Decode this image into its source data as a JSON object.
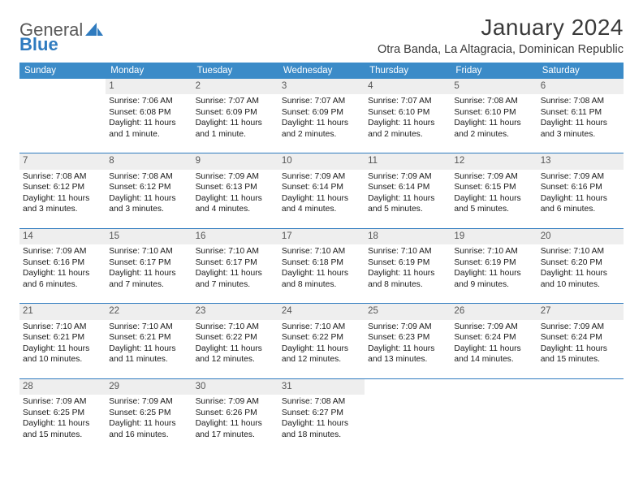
{
  "brand": {
    "part1": "General",
    "part2": "Blue"
  },
  "title": {
    "month": "January 2024",
    "location": "Otra Banda, La Altagracia, Dominican Republic"
  },
  "colors": {
    "header_bg": "#3b8bc8",
    "header_text": "#ffffff",
    "accent": "#2f7bbf",
    "daynum_bg": "#eeeeee",
    "daynum_text": "#565656",
    "body_text": "#1a1a1a",
    "page_bg": "#ffffff"
  },
  "typography": {
    "title_fontsize": 28,
    "location_fontsize": 14.5,
    "dayhead_fontsize": 11.5,
    "cell_fontsize": 10.3
  },
  "dayNames": [
    "Sunday",
    "Monday",
    "Tuesday",
    "Wednesday",
    "Thursday",
    "Friday",
    "Saturday"
  ],
  "labels": {
    "sunrise": "Sunrise:",
    "sunset": "Sunset:",
    "daylight": "Daylight:"
  },
  "startWeekday": 1,
  "days": [
    {
      "n": 1,
      "sunrise": "7:06 AM",
      "sunset": "6:08 PM",
      "daylight": "11 hours and 1 minute."
    },
    {
      "n": 2,
      "sunrise": "7:07 AM",
      "sunset": "6:09 PM",
      "daylight": "11 hours and 1 minute."
    },
    {
      "n": 3,
      "sunrise": "7:07 AM",
      "sunset": "6:09 PM",
      "daylight": "11 hours and 2 minutes."
    },
    {
      "n": 4,
      "sunrise": "7:07 AM",
      "sunset": "6:10 PM",
      "daylight": "11 hours and 2 minutes."
    },
    {
      "n": 5,
      "sunrise": "7:08 AM",
      "sunset": "6:10 PM",
      "daylight": "11 hours and 2 minutes."
    },
    {
      "n": 6,
      "sunrise": "7:08 AM",
      "sunset": "6:11 PM",
      "daylight": "11 hours and 3 minutes."
    },
    {
      "n": 7,
      "sunrise": "7:08 AM",
      "sunset": "6:12 PM",
      "daylight": "11 hours and 3 minutes."
    },
    {
      "n": 8,
      "sunrise": "7:08 AM",
      "sunset": "6:12 PM",
      "daylight": "11 hours and 3 minutes."
    },
    {
      "n": 9,
      "sunrise": "7:09 AM",
      "sunset": "6:13 PM",
      "daylight": "11 hours and 4 minutes."
    },
    {
      "n": 10,
      "sunrise": "7:09 AM",
      "sunset": "6:14 PM",
      "daylight": "11 hours and 4 minutes."
    },
    {
      "n": 11,
      "sunrise": "7:09 AM",
      "sunset": "6:14 PM",
      "daylight": "11 hours and 5 minutes."
    },
    {
      "n": 12,
      "sunrise": "7:09 AM",
      "sunset": "6:15 PM",
      "daylight": "11 hours and 5 minutes."
    },
    {
      "n": 13,
      "sunrise": "7:09 AM",
      "sunset": "6:16 PM",
      "daylight": "11 hours and 6 minutes."
    },
    {
      "n": 14,
      "sunrise": "7:09 AM",
      "sunset": "6:16 PM",
      "daylight": "11 hours and 6 minutes."
    },
    {
      "n": 15,
      "sunrise": "7:10 AM",
      "sunset": "6:17 PM",
      "daylight": "11 hours and 7 minutes."
    },
    {
      "n": 16,
      "sunrise": "7:10 AM",
      "sunset": "6:17 PM",
      "daylight": "11 hours and 7 minutes."
    },
    {
      "n": 17,
      "sunrise": "7:10 AM",
      "sunset": "6:18 PM",
      "daylight": "11 hours and 8 minutes."
    },
    {
      "n": 18,
      "sunrise": "7:10 AM",
      "sunset": "6:19 PM",
      "daylight": "11 hours and 8 minutes."
    },
    {
      "n": 19,
      "sunrise": "7:10 AM",
      "sunset": "6:19 PM",
      "daylight": "11 hours and 9 minutes."
    },
    {
      "n": 20,
      "sunrise": "7:10 AM",
      "sunset": "6:20 PM",
      "daylight": "11 hours and 10 minutes."
    },
    {
      "n": 21,
      "sunrise": "7:10 AM",
      "sunset": "6:21 PM",
      "daylight": "11 hours and 10 minutes."
    },
    {
      "n": 22,
      "sunrise": "7:10 AM",
      "sunset": "6:21 PM",
      "daylight": "11 hours and 11 minutes."
    },
    {
      "n": 23,
      "sunrise": "7:10 AM",
      "sunset": "6:22 PM",
      "daylight": "11 hours and 12 minutes."
    },
    {
      "n": 24,
      "sunrise": "7:10 AM",
      "sunset": "6:22 PM",
      "daylight": "11 hours and 12 minutes."
    },
    {
      "n": 25,
      "sunrise": "7:09 AM",
      "sunset": "6:23 PM",
      "daylight": "11 hours and 13 minutes."
    },
    {
      "n": 26,
      "sunrise": "7:09 AM",
      "sunset": "6:24 PM",
      "daylight": "11 hours and 14 minutes."
    },
    {
      "n": 27,
      "sunrise": "7:09 AM",
      "sunset": "6:24 PM",
      "daylight": "11 hours and 15 minutes."
    },
    {
      "n": 28,
      "sunrise": "7:09 AM",
      "sunset": "6:25 PM",
      "daylight": "11 hours and 15 minutes."
    },
    {
      "n": 29,
      "sunrise": "7:09 AM",
      "sunset": "6:25 PM",
      "daylight": "11 hours and 16 minutes."
    },
    {
      "n": 30,
      "sunrise": "7:09 AM",
      "sunset": "6:26 PM",
      "daylight": "11 hours and 17 minutes."
    },
    {
      "n": 31,
      "sunrise": "7:08 AM",
      "sunset": "6:27 PM",
      "daylight": "11 hours and 18 minutes."
    }
  ]
}
